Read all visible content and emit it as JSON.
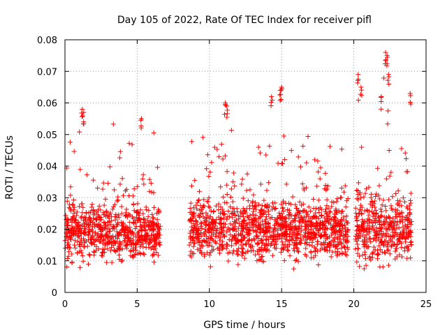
{
  "chart_data": {
    "type": "scatter",
    "title": "Day 105 of 2022, Rate Of TEC Index for receiver pifl",
    "xlabel": "GPS time / hours",
    "ylabel": "ROTI / TECUs",
    "xlim": [
      0,
      25
    ],
    "ylim": [
      0,
      0.08
    ],
    "xticks": [
      "0",
      "5",
      "10",
      "15",
      "20",
      "25"
    ],
    "yticks": [
      "0",
      "0.01",
      "0.02",
      "0.03",
      "0.04",
      "0.05",
      "0.06",
      "0.07",
      "0.08"
    ],
    "grid": true,
    "marker": "+",
    "color": "#ff0000",
    "series": [
      {
        "name": "ROTI",
        "segments": [
          {
            "x_start": 0.0,
            "x_end": 6.6,
            "typical": 0.019,
            "min": 0.006,
            "peak": 0.058,
            "spread": 0.008
          },
          {
            "x_start": 8.6,
            "x_end": 19.6,
            "typical": 0.02,
            "min": 0.006,
            "peak": 0.065,
            "spread": 0.009
          },
          {
            "x_start": 20.1,
            "x_end": 24.0,
            "typical": 0.02,
            "min": 0.007,
            "peak": 0.076,
            "spread": 0.01
          }
        ],
        "notable_points": [
          {
            "x": 1.2,
            "y": 0.058
          },
          {
            "x": 1.3,
            "y": 0.057
          },
          {
            "x": 5.3,
            "y": 0.055
          },
          {
            "x": 11.1,
            "y": 0.06
          },
          {
            "x": 11.2,
            "y": 0.059
          },
          {
            "x": 14.9,
            "y": 0.064
          },
          {
            "x": 15.0,
            "y": 0.065
          },
          {
            "x": 14.3,
            "y": 0.062
          },
          {
            "x": 20.3,
            "y": 0.069
          },
          {
            "x": 20.5,
            "y": 0.065
          },
          {
            "x": 22.2,
            "y": 0.076
          },
          {
            "x": 22.3,
            "y": 0.075
          },
          {
            "x": 22.4,
            "y": 0.069
          },
          {
            "x": 21.9,
            "y": 0.062
          },
          {
            "x": 23.9,
            "y": 0.063
          }
        ]
      }
    ]
  }
}
